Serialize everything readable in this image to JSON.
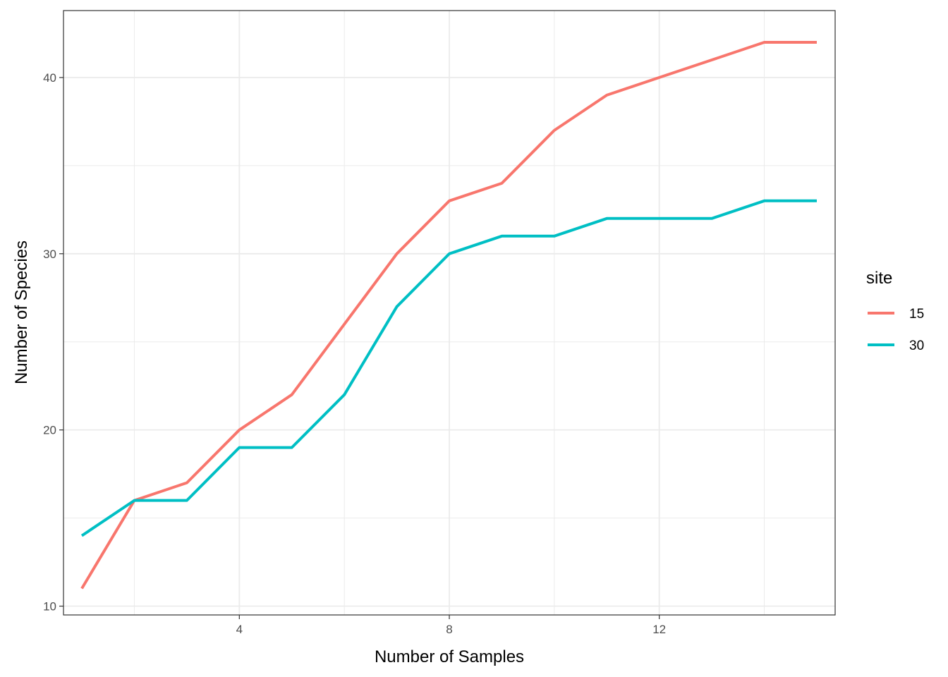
{
  "chart_data": {
    "type": "line",
    "xlabel": "Number of Samples",
    "ylabel": "Number of Species",
    "xlim": [
      0.65,
      15.35
    ],
    "ylim": [
      9.5,
      43.8
    ],
    "x_ticks": [
      4,
      8,
      12
    ],
    "x_tick_labels": [
      "4",
      "8",
      "12"
    ],
    "y_ticks": [
      10,
      20,
      30,
      40
    ],
    "y_tick_labels": [
      "10",
      "20",
      "30",
      "40"
    ],
    "grid": true,
    "legend": {
      "title": "site",
      "position": "right"
    },
    "x": [
      1,
      2,
      3,
      4,
      5,
      6,
      7,
      8,
      9,
      10,
      11,
      12,
      13,
      14,
      15
    ],
    "series": [
      {
        "name": "15",
        "color": "#F8766D",
        "values": [
          11,
          16,
          17,
          20,
          22,
          26,
          30,
          33,
          34,
          37,
          39,
          40,
          41,
          42,
          42
        ]
      },
      {
        "name": "30",
        "color": "#00BFC4",
        "values": [
          14,
          16,
          16,
          19,
          19,
          22,
          27,
          30,
          31,
          31,
          32,
          32,
          32,
          33,
          33
        ]
      }
    ]
  }
}
